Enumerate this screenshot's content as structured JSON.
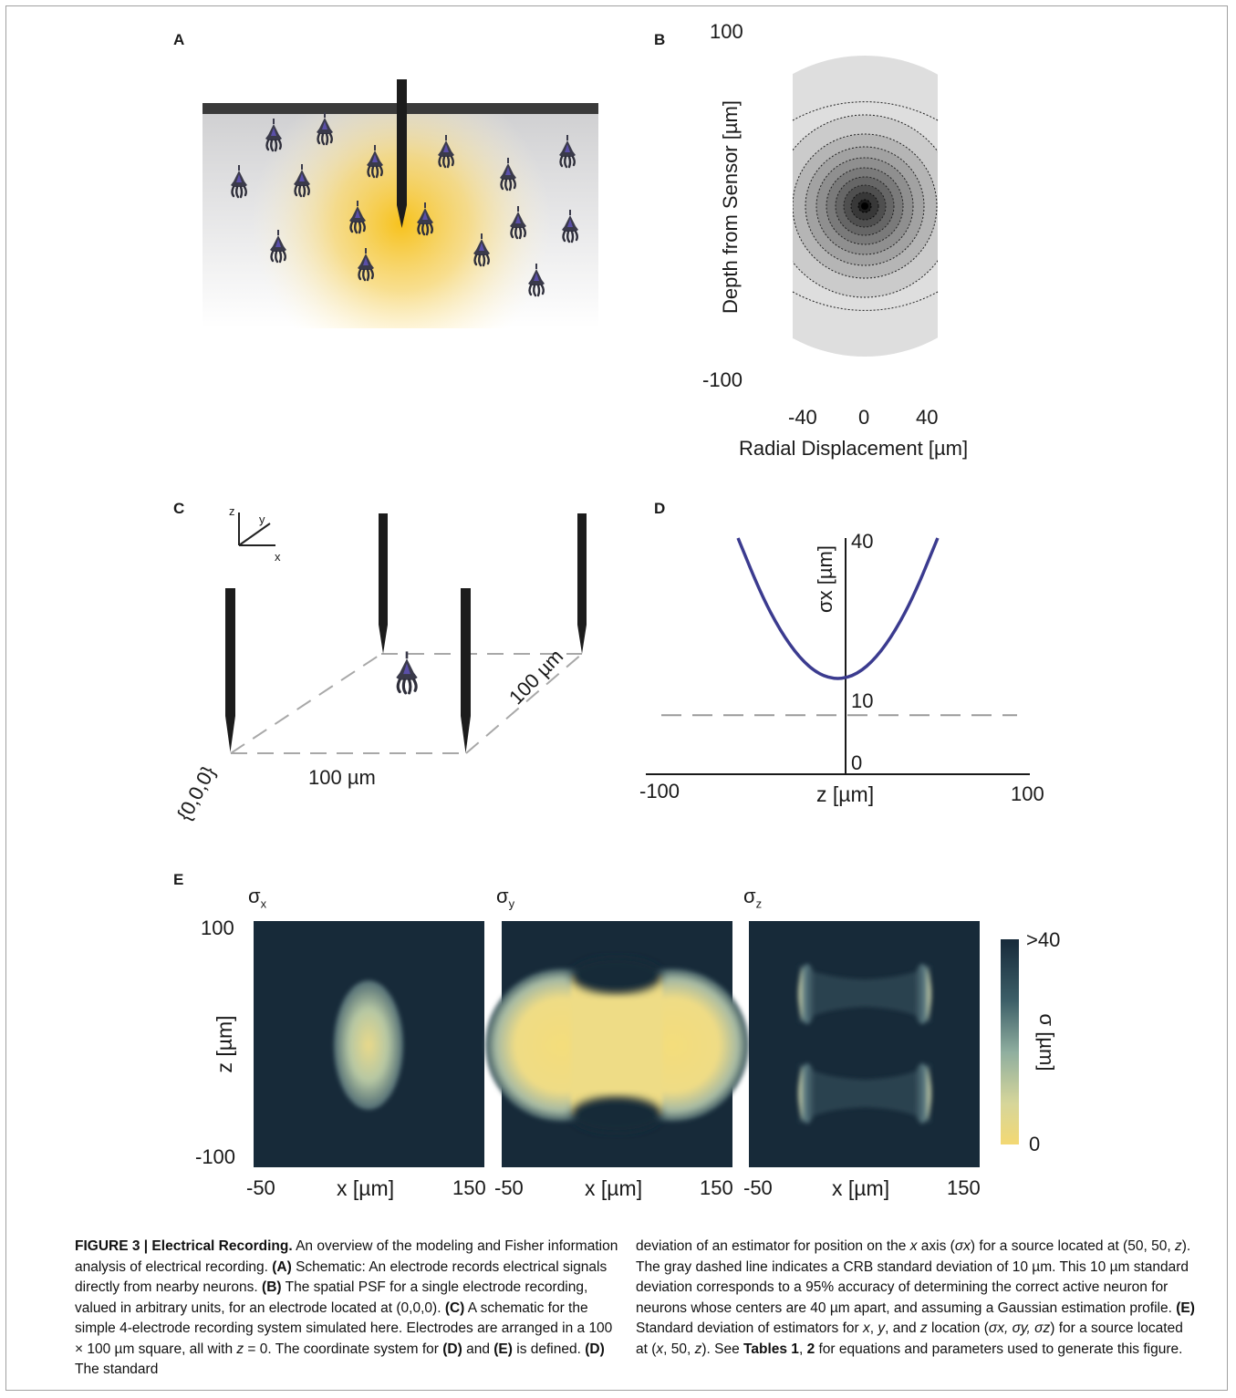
{
  "panel_labels": {
    "a": "A",
    "b": "B",
    "c": "C",
    "d": "D",
    "e": "E"
  },
  "panel_b": {
    "y_top": "100",
    "y_bottom": "-100",
    "x_ticks": [
      "-40",
      "0",
      "40"
    ],
    "ylabel": "Depth from Sensor [µm]",
    "xlabel": "Radial Displacement [µm]"
  },
  "panel_c": {
    "axis_z": "z",
    "axis_y": "y",
    "axis_x": "x",
    "dim_bottom": "100 µm",
    "dim_side": "100 µm",
    "origin": "{0,0,0}"
  },
  "chart_data": [
    {
      "type": "line",
      "panel": "D",
      "ylabel": "σx [µm]",
      "xlabel": "z [µm]",
      "xlim": [
        -100,
        100
      ],
      "ylim": [
        0,
        40
      ],
      "x_tick_labels": [
        "-100",
        "100"
      ],
      "y_tick_labels": [
        "0",
        "10",
        "40"
      ],
      "series": [
        {
          "name": "",
          "color": "#3b3b8f",
          "x": [
            -52,
            -40,
            -30,
            -20,
            -10,
            0,
            10,
            20,
            30,
            40,
            52
          ],
          "y": [
            40,
            30.5,
            24.3,
            19.7,
            16.9,
            16,
            16.9,
            19.7,
            24.3,
            30.5,
            40
          ]
        }
      ],
      "reference_line": {
        "y": 10,
        "style": "dashed",
        "color": "#9a9a9a"
      }
    },
    {
      "type": "heatmap",
      "panel": "E",
      "panels": [
        {
          "title": "σ",
          "subscript": "x"
        },
        {
          "title": "σ",
          "subscript": "y"
        },
        {
          "title": "σ",
          "subscript": "z"
        }
      ],
      "xlabel": "x [µm]",
      "ylabel": "z [µm]",
      "x_ticks": [
        "-50",
        "150"
      ],
      "y_ticks": [
        "100",
        "-100"
      ],
      "xlim": [
        -50,
        150
      ],
      "ylim": [
        -100,
        100
      ],
      "colorbar": {
        "label": "σ [µm]",
        "max_label": ">40",
        "min_label": "0",
        "color_low": "#f3d873",
        "color_high": "#162a3a"
      }
    }
  ],
  "caption": {
    "fig": "FIGURE 3 | Electrical Recording.",
    "intro": " An overview of the modeling and Fisher information analysis of electrical recording. ",
    "a_lbl": "(A)",
    "a_txt": " Schematic: An electrode records electrical signals directly from nearby neurons. ",
    "b_lbl": "(B)",
    "b_txt": " The spatial PSF for a single electrode recording, valued in arbitrary units, for an electrode located at (0,0,0). ",
    "c_lbl": "(C)",
    "c_txt": " A schematic for the simple 4-electrode recording system simulated here. Electrodes are arranged in a 100 × 100 µm square, all with ",
    "c_z": "z",
    "c_eq": " = 0. The coordinate system for ",
    "c_d": "(D)",
    "c_and": " and ",
    "c_e": "(E)",
    "c_def": " is defined. ",
    "d_lbl": "(D)",
    "d_txt": " The standard",
    "r1": "deviation of an estimator for position on the ",
    "r1_x": "x",
    "r1_b": " axis (",
    "r1_s": "σx",
    "r1_c": ") for a source located at (50, 50, ",
    "r1_z": "z",
    "r1_d": "). The gray dashed line indicates a CRB standard deviation of 10 µm. This 10 µm standard deviation corresponds to a 95% accuracy of determining the correct active neuron for neurons whose centers are 40 µm apart, and assuming a Gaussian estimation profile. ",
    "e_lbl": "(E)",
    "e_txt": " Standard deviation of estimators for ",
    "e_x": "x",
    "e_c1": ", ",
    "e_y": "y",
    "e_c2": ", and ",
    "e_z": "z",
    "e_loc": " location (",
    "e_s": "σx, σy, σz",
    "e_for": ") for a source located at (",
    "e_x2": "x",
    "e_50": ", 50, ",
    "e_z2": "z",
    "e_see": "). See ",
    "t_lbl": "Tables 1",
    "t_comma": ", ",
    "t2_lbl": "2",
    "t_end": " for equations and parameters used to generate this figure."
  }
}
